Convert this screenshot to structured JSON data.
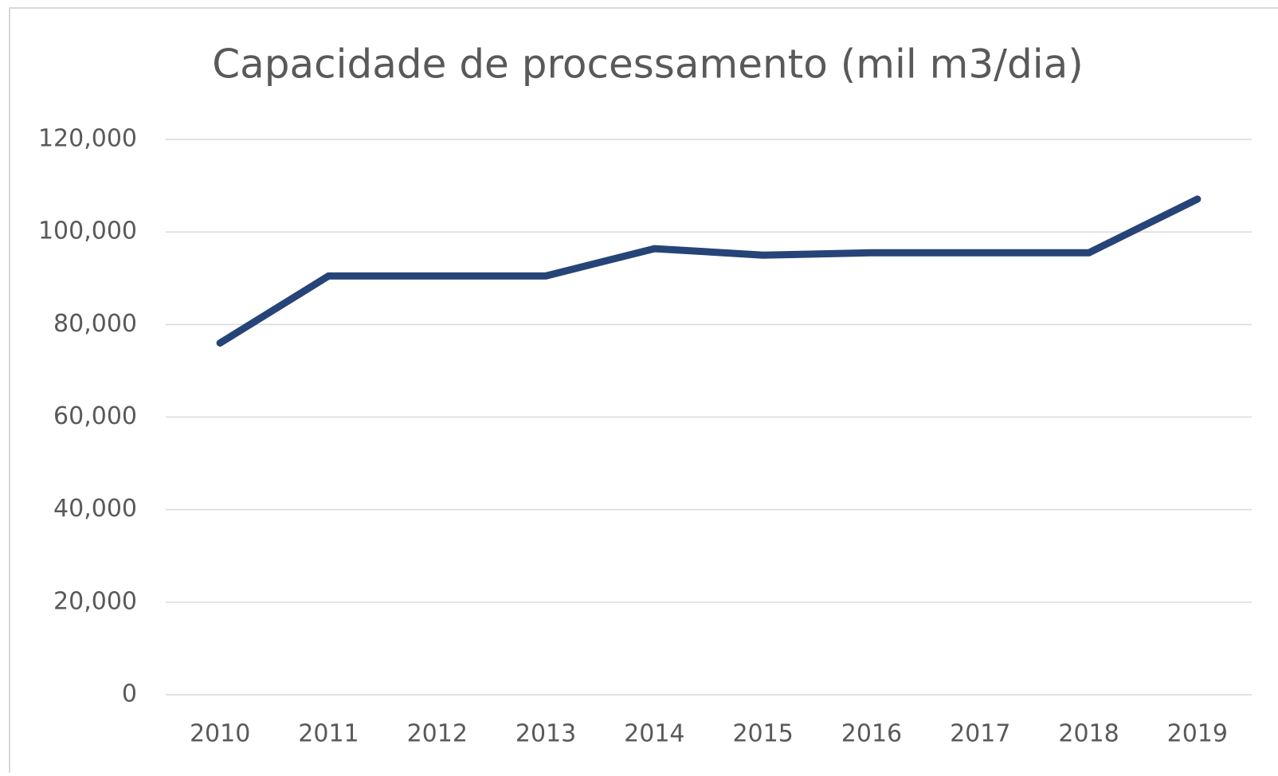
{
  "chart_data": {
    "type": "line",
    "title": "Capacidade de processamento (mil m3/dia)",
    "categories": [
      "2010",
      "2011",
      "2012",
      "2013",
      "2014",
      "2015",
      "2016",
      "2017",
      "2018",
      "2019"
    ],
    "values": [
      76000,
      90500,
      90500,
      90500,
      96400,
      95000,
      95500,
      95500,
      95500,
      107100
    ],
    "color": "#264478",
    "ylim": [
      0,
      120000
    ],
    "yticks": [
      0,
      {
        "value": 20000,
        "label": "20,000"
      },
      {
        "value": 40000,
        "label": "40,000"
      },
      {
        "value": 60000,
        "label": "60,000"
      },
      {
        "value": 80000,
        "label": "80,000"
      },
      {
        "value": 100000,
        "label": "100,000"
      },
      {
        "value": 120000,
        "label": "120,000"
      }
    ],
    "grid": true
  }
}
